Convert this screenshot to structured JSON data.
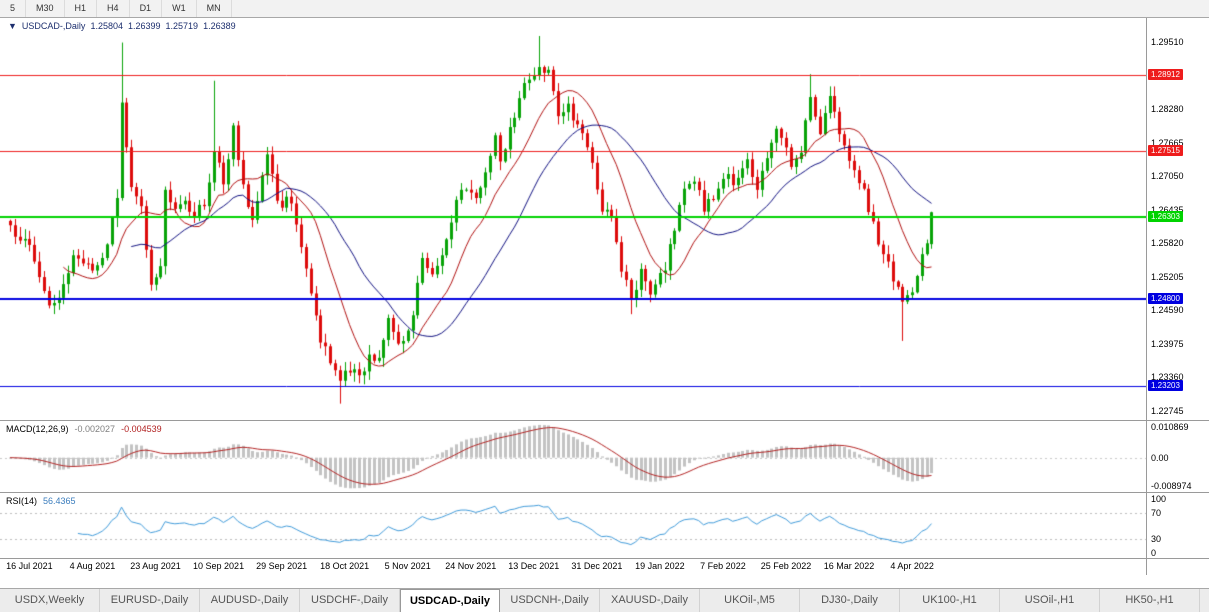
{
  "toolbar": {
    "timeframes": [
      "5",
      "M30",
      "H1",
      "H4",
      "D1",
      "W1",
      "MN"
    ]
  },
  "chart_header": {
    "collapse_icon": "▼",
    "symbol": "USDCAD-,Daily",
    "open": "1.25804",
    "high": "1.26399",
    "low": "1.25719",
    "close": "1.26389"
  },
  "chart_data": {
    "type": "candlestick",
    "title": "USDCAD-,Daily",
    "bars": 191,
    "ylim": [
      1.2258,
      1.2995
    ],
    "up_color": "#07a307",
    "down_color": "#dd0b0b",
    "price_ticks": [
      "1.29510",
      "1.28280",
      "1.27665",
      "1.27050",
      "1.26435",
      "1.25820",
      "1.25205",
      "1.24590",
      "1.23975",
      "1.23360",
      "1.22745"
    ],
    "hlines": [
      {
        "value": 1.28912,
        "label": "1.28912",
        "color": "#ee1c1c",
        "width": 1
      },
      {
        "value": 1.27515,
        "label": "1.27515",
        "color": "#ee1c1c",
        "width": 1
      },
      {
        "value": 1.26303,
        "label": "1.26303",
        "color": "#00d300",
        "width": 2
      },
      {
        "value": 1.248,
        "label": "1.24800",
        "color": "#0000e0",
        "width": 2
      },
      {
        "value": 1.23203,
        "label": "1.23203",
        "color": "#0000e0",
        "width": 1
      }
    ],
    "moving_averages": [
      {
        "period": 12,
        "color": "#b01010"
      },
      {
        "period": 26,
        "color": "#101080"
      }
    ],
    "x_labels": [
      {
        "bar": 4,
        "label": "16 Jul 2021"
      },
      {
        "bar": 17,
        "label": "4 Aug 2021"
      },
      {
        "bar": 30,
        "label": "23 Aug 2021"
      },
      {
        "bar": 43,
        "label": "10 Sep 2021"
      },
      {
        "bar": 56,
        "label": "29 Sep 2021"
      },
      {
        "bar": 69,
        "label": "18 Oct 2021"
      },
      {
        "bar": 82,
        "label": "5 Nov 2021"
      },
      {
        "bar": 95,
        "label": "24 Nov 2021"
      },
      {
        "bar": 108,
        "label": "13 Dec 2021"
      },
      {
        "bar": 121,
        "label": "31 Dec 2021"
      },
      {
        "bar": 134,
        "label": "19 Jan 2022"
      },
      {
        "bar": 147,
        "label": "7 Feb 2022"
      },
      {
        "bar": 160,
        "label": "25 Feb 2022"
      },
      {
        "bar": 173,
        "label": "16 Mar 2022"
      },
      {
        "bar": 186,
        "label": "4 Apr 2022"
      }
    ],
    "last_candle": {
      "open": 1.25804,
      "high": 1.26399,
      "low": 1.25719,
      "close": 1.26389
    },
    "close_waypoints": [
      [
        0,
        1.2615
      ],
      [
        3,
        1.259
      ],
      [
        6,
        1.252
      ],
      [
        8,
        1.2468
      ],
      [
        10,
        1.2482
      ],
      [
        13,
        1.256
      ],
      [
        15,
        1.2545
      ],
      [
        17,
        1.2532
      ],
      [
        20,
        1.258
      ],
      [
        22,
        1.2665
      ],
      [
        23,
        1.284,
        1.295,
        null
      ],
      [
        24,
        1.2758
      ],
      [
        25,
        1.2685
      ],
      [
        27,
        1.265
      ],
      [
        29,
        1.2506
      ],
      [
        31,
        1.254
      ],
      [
        32,
        1.268
      ],
      [
        34,
        1.2645
      ],
      [
        36,
        1.266
      ],
      [
        38,
        1.263
      ],
      [
        40,
        1.265
      ],
      [
        42,
        1.275,
        1.288,
        null
      ],
      [
        44,
        1.269
      ],
      [
        46,
        1.2798
      ],
      [
        48,
        1.269
      ],
      [
        50,
        1.2625
      ],
      [
        53,
        1.2745
      ],
      [
        55,
        1.266
      ],
      [
        58,
        1.2655
      ],
      [
        60,
        1.2575
      ],
      [
        62,
        1.249
      ],
      [
        64,
        1.24
      ],
      [
        66,
        1.2362
      ],
      [
        68,
        1.233,
        null,
        1.2288
      ],
      [
        70,
        1.2345
      ],
      [
        72,
        1.234
      ],
      [
        74,
        1.2378
      ],
      [
        76,
        1.2372
      ],
      [
        78,
        1.2445
      ],
      [
        80,
        1.2398
      ],
      [
        83,
        1.245
      ],
      [
        85,
        1.2555
      ],
      [
        87,
        1.2525
      ],
      [
        89,
        1.256
      ],
      [
        91,
        1.262
      ],
      [
        93,
        1.268
      ],
      [
        96,
        1.2665
      ],
      [
        98,
        1.2712
      ],
      [
        100,
        1.278
      ],
      [
        101,
        1.2732
      ],
      [
        103,
        1.2795
      ],
      [
        105,
        1.2848
      ],
      [
        107,
        1.2882
      ],
      [
        109,
        1.2905,
        1.2962,
        null
      ],
      [
        111,
        1.29
      ],
      [
        113,
        1.2815
      ],
      [
        115,
        1.2838
      ],
      [
        117,
        1.28
      ],
      [
        119,
        1.2758
      ],
      [
        122,
        1.264
      ],
      [
        124,
        1.263
      ],
      [
        126,
        1.253
      ],
      [
        128,
        1.2478,
        null,
        1.2452
      ],
      [
        130,
        1.2535
      ],
      [
        132,
        1.2488
      ],
      [
        135,
        1.2532
      ],
      [
        137,
        1.2605
      ],
      [
        139,
        1.2682
      ],
      [
        141,
        1.2695
      ],
      [
        143,
        1.264
      ],
      [
        145,
        1.2662
      ],
      [
        147,
        1.27
      ],
      [
        150,
        1.2702
      ],
      [
        152,
        1.2736
      ],
      [
        154,
        1.268
      ],
      [
        156,
        1.2738
      ],
      [
        158,
        1.2792
      ],
      [
        161,
        1.2722
      ],
      [
        163,
        1.2748
      ],
      [
        165,
        1.285,
        1.2892,
        null
      ],
      [
        167,
        1.2782
      ],
      [
        169,
        1.2852
      ],
      [
        171,
        1.2782
      ],
      [
        174,
        1.2716
      ],
      [
        176,
        1.2682
      ],
      [
        178,
        1.2622
      ],
      [
        180,
        1.2562
      ],
      [
        182,
        1.2512
      ],
      [
        184,
        1.2475,
        null,
        1.2403
      ],
      [
        186,
        1.2492
      ],
      [
        187,
        1.2522
      ],
      [
        188,
        1.2562
      ],
      [
        189,
        1.2582
      ],
      [
        190,
        1.26389
      ]
    ]
  },
  "macd_panel": {
    "name": "MACD(12,26,9)",
    "value_main": "-0.002027",
    "value_signal": "-0.004539",
    "axis_labels": [
      "0.010869",
      "0.00",
      "-0.008974"
    ],
    "params": {
      "fast": 12,
      "slow": 26,
      "signal": 9
    },
    "colors": {
      "histogram": "#c3c3c3",
      "signal": "#b22222"
    }
  },
  "rsi_panel": {
    "name": "RSI(14)",
    "value": "56.4365",
    "period": 14,
    "axis_labels": [
      "100",
      "70",
      "30",
      "0"
    ],
    "axis_values": [
      100,
      70,
      30,
      0
    ],
    "levels": [
      70,
      30
    ],
    "color": "#3f9ad9",
    "level_color": "#bcbcbc"
  },
  "tabs": [
    {
      "label": "USDX,Weekly",
      "active": false
    },
    {
      "label": "EURUSD-,Daily",
      "active": false
    },
    {
      "label": "AUDUSD-,Daily",
      "active": false
    },
    {
      "label": "USDCHF-,Daily",
      "active": false
    },
    {
      "label": "USDCAD-,Daily",
      "active": true
    },
    {
      "label": "USDCNH-,Daily",
      "active": false
    },
    {
      "label": "XAUUSD-,Daily",
      "active": false
    },
    {
      "label": "UKOil-,M5",
      "active": false
    },
    {
      "label": "DJ30-,Daily",
      "active": false
    },
    {
      "label": "UK100-,H1",
      "active": false
    },
    {
      "label": "USOil-,H1",
      "active": false
    },
    {
      "label": "HK50-,H1",
      "active": false
    }
  ]
}
